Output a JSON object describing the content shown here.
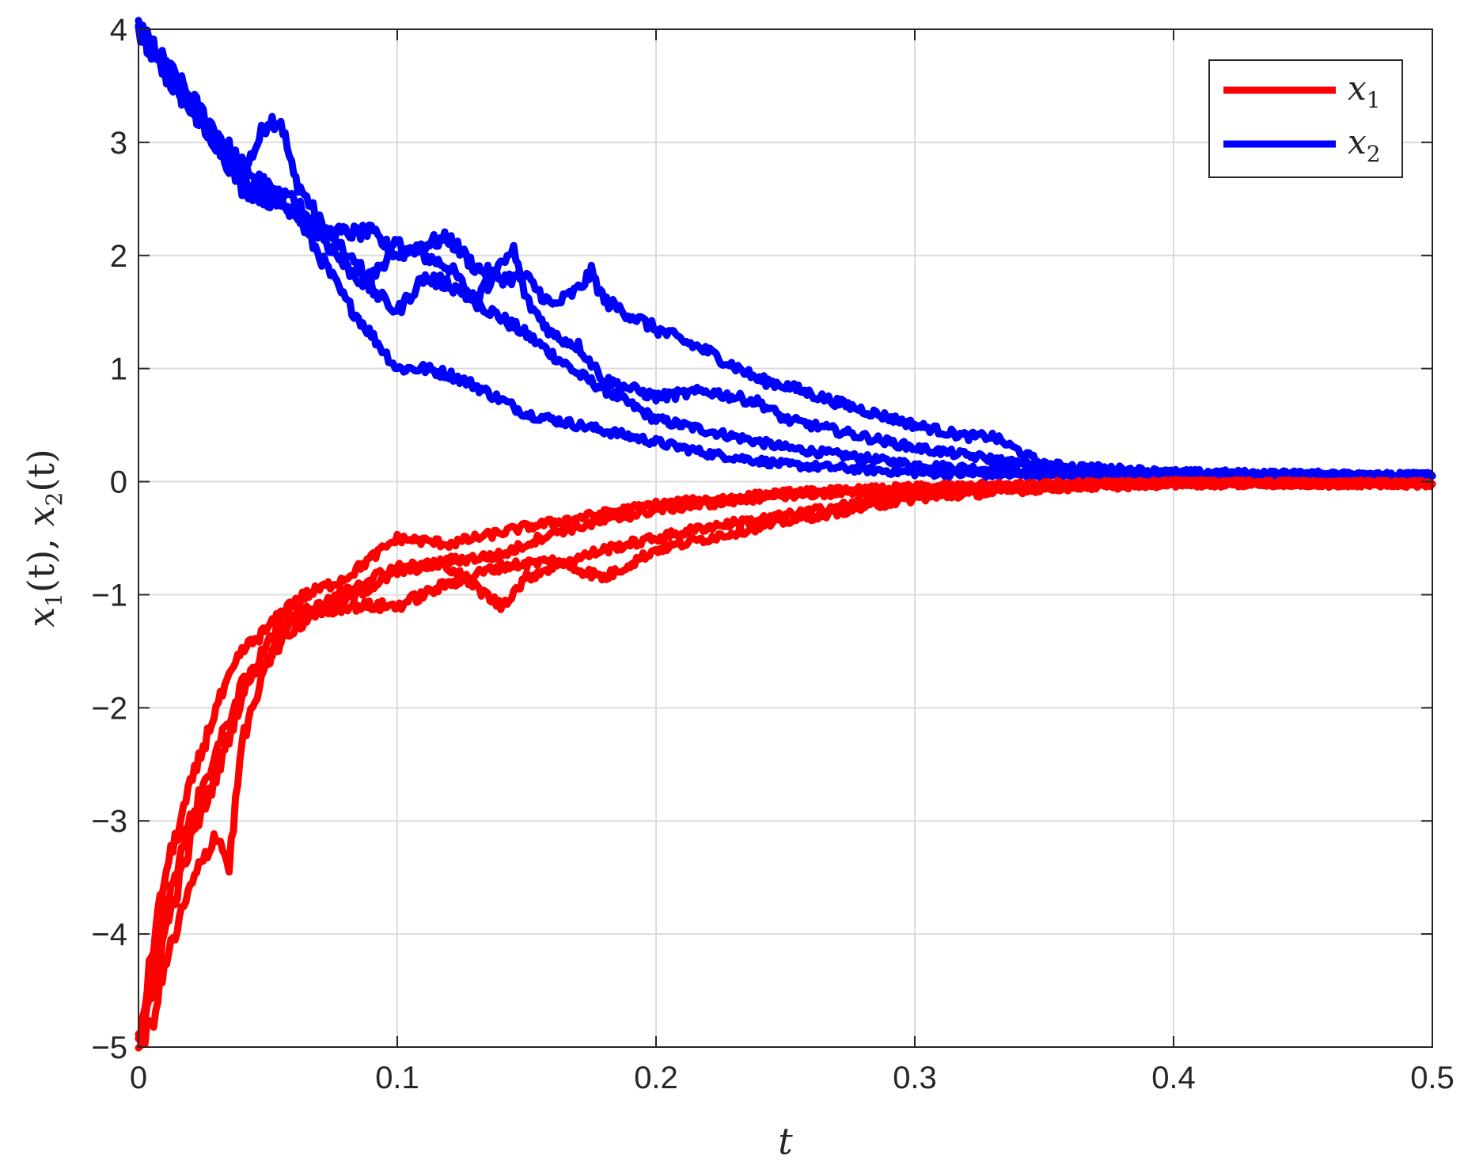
{
  "chart_data": {
    "type": "line",
    "xlabel": "t",
    "ylabel": "x1(t), x2(t)",
    "ylabel_parts": {
      "a": "x",
      "a_sub": "1",
      "a_rest": "(t), ",
      "b": "x",
      "b_sub": "2",
      "b_rest": "(t)"
    },
    "xlim": [
      0,
      0.5
    ],
    "ylim": [
      -5,
      4
    ],
    "xticks": [
      0,
      0.1,
      0.2,
      0.3,
      0.4,
      0.5
    ],
    "xtick_labels": [
      "0",
      "0.1",
      "0.2",
      "0.3",
      "0.4",
      "0.5"
    ],
    "yticks": [
      -5,
      -4,
      -3,
      -2,
      -1,
      0,
      1,
      2,
      3,
      4
    ],
    "ytick_labels": [
      "−5",
      "−4",
      "−3",
      "−2",
      "−1",
      "0",
      "1",
      "2",
      "3",
      "4"
    ],
    "grid": true,
    "legend_position": "top-right",
    "legend": [
      {
        "label": "x",
        "sub": "1",
        "color": "#ff0000"
      },
      {
        "label": "x",
        "sub": "2",
        "color": "#0000ff"
      }
    ],
    "series": [
      {
        "name": "x1",
        "color": "#ff0000",
        "x": [
          0,
          0.005,
          0.01,
          0.02,
          0.03,
          0.04,
          0.05,
          0.06,
          0.08,
          0.1,
          0.12,
          0.15,
          0.2,
          0.25,
          0.3,
          0.35,
          0.4,
          0.5
        ],
        "values": [
          -5,
          -4.2,
          -3.5,
          -2.7,
          -2.0,
          -1.5,
          -1.3,
          -1.05,
          -0.85,
          -0.5,
          -0.55,
          -0.4,
          -0.2,
          -0.1,
          -0.05,
          -0.02,
          -0.01,
          -0.02
        ]
      },
      {
        "name": "x1",
        "color": "#ff0000",
        "x": [
          0,
          0.005,
          0.01,
          0.02,
          0.03,
          0.04,
          0.05,
          0.06,
          0.08,
          0.1,
          0.12,
          0.14,
          0.16,
          0.2,
          0.25,
          0.3,
          0.35,
          0.4,
          0.5
        ],
        "values": [
          -5,
          -4.6,
          -4.0,
          -3.2,
          -2.6,
          -1.9,
          -1.4,
          -1.15,
          -1.05,
          -0.8,
          -0.7,
          -0.65,
          -0.45,
          -0.25,
          -0.12,
          -0.08,
          -0.03,
          -0.01,
          -0.02
        ]
      },
      {
        "name": "x1",
        "color": "#ff0000",
        "x": [
          0,
          0.005,
          0.01,
          0.02,
          0.03,
          0.035,
          0.04,
          0.05,
          0.06,
          0.08,
          0.1,
          0.12,
          0.14,
          0.16,
          0.18,
          0.2,
          0.25,
          0.3,
          0.35,
          0.4,
          0.5
        ],
        "values": [
          -5,
          -4.8,
          -4.3,
          -3.6,
          -3.1,
          -3.4,
          -2.3,
          -1.6,
          -1.2,
          -1.1,
          -1.1,
          -0.9,
          -0.75,
          -0.7,
          -0.85,
          -0.6,
          -0.35,
          -0.15,
          -0.06,
          -0.02,
          -0.02
        ]
      },
      {
        "name": "x1",
        "color": "#ff0000",
        "x": [
          0,
          0.005,
          0.01,
          0.02,
          0.03,
          0.04,
          0.05,
          0.06,
          0.08,
          0.1,
          0.12,
          0.14,
          0.15,
          0.16,
          0.18,
          0.2,
          0.22,
          0.25,
          0.3,
          0.35,
          0.4,
          0.5
        ],
        "values": [
          -5,
          -4.4,
          -3.8,
          -3.0,
          -2.4,
          -1.8,
          -1.55,
          -1.3,
          -0.95,
          -0.75,
          -0.75,
          -1.1,
          -0.85,
          -0.75,
          -0.6,
          -0.5,
          -0.4,
          -0.3,
          -0.1,
          -0.04,
          -0.01,
          -0.02
        ]
      },
      {
        "name": "x2",
        "color": "#0000ff",
        "x": [
          0,
          0.01,
          0.02,
          0.03,
          0.04,
          0.05,
          0.055,
          0.06,
          0.07,
          0.08,
          0.09,
          0.1,
          0.11,
          0.12,
          0.13,
          0.15,
          0.17,
          0.2,
          0.25,
          0.3,
          0.35,
          0.4,
          0.5
        ],
        "values": [
          4,
          3.6,
          3.3,
          3.0,
          2.7,
          3.2,
          3.2,
          2.7,
          2.3,
          2.0,
          1.8,
          2.1,
          2.0,
          1.9,
          1.6,
          1.3,
          0.95,
          0.55,
          0.3,
          0.15,
          0.08,
          0.05,
          0.05
        ]
      },
      {
        "name": "x2",
        "color": "#0000ff",
        "x": [
          0,
          0.01,
          0.02,
          0.03,
          0.04,
          0.05,
          0.06,
          0.07,
          0.08,
          0.09,
          0.1,
          0.11,
          0.12,
          0.13,
          0.15,
          0.17,
          0.19,
          0.2,
          0.22,
          0.25,
          0.3,
          0.35,
          0.4,
          0.5
        ],
        "values": [
          4,
          3.7,
          3.4,
          3.1,
          2.8,
          2.6,
          2.4,
          2.0,
          1.6,
          1.3,
          1.0,
          1.0,
          0.95,
          0.85,
          0.6,
          0.5,
          0.4,
          0.35,
          0.25,
          0.15,
          0.08,
          0.05,
          0.04,
          0.05
        ]
      },
      {
        "name": "x2",
        "color": "#0000ff",
        "x": [
          0,
          0.01,
          0.02,
          0.03,
          0.04,
          0.05,
          0.06,
          0.07,
          0.08,
          0.09,
          0.1,
          0.11,
          0.12,
          0.13,
          0.14,
          0.15,
          0.16,
          0.17,
          0.175,
          0.18,
          0.2,
          0.22,
          0.24,
          0.25,
          0.27,
          0.3,
          0.32,
          0.33,
          0.35,
          0.4,
          0.5
        ],
        "values": [
          4,
          3.7,
          3.35,
          3.0,
          2.6,
          2.5,
          2.4,
          2.2,
          2.2,
          2.2,
          2.0,
          2.1,
          2.15,
          1.9,
          1.8,
          1.8,
          1.55,
          1.7,
          1.85,
          1.6,
          1.35,
          1.15,
          0.9,
          0.85,
          0.7,
          0.5,
          0.4,
          0.4,
          0.15,
          0.08,
          0.05
        ]
      },
      {
        "name": "x2",
        "color": "#0000ff",
        "x": [
          0,
          0.01,
          0.02,
          0.03,
          0.04,
          0.05,
          0.06,
          0.07,
          0.08,
          0.09,
          0.1,
          0.11,
          0.12,
          0.13,
          0.14,
          0.145,
          0.15,
          0.16,
          0.17,
          0.18,
          0.2,
          0.22,
          0.24,
          0.25,
          0.27,
          0.3,
          0.33,
          0.35,
          0.4,
          0.5
        ],
        "values": [
          4,
          3.65,
          3.3,
          3.05,
          2.7,
          2.5,
          2.5,
          2.2,
          1.9,
          1.7,
          1.5,
          1.8,
          1.75,
          1.6,
          1.9,
          2.05,
          1.6,
          1.3,
          1.2,
          0.9,
          0.75,
          0.8,
          0.7,
          0.55,
          0.45,
          0.3,
          0.2,
          0.12,
          0.07,
          0.05
        ]
      }
    ]
  }
}
